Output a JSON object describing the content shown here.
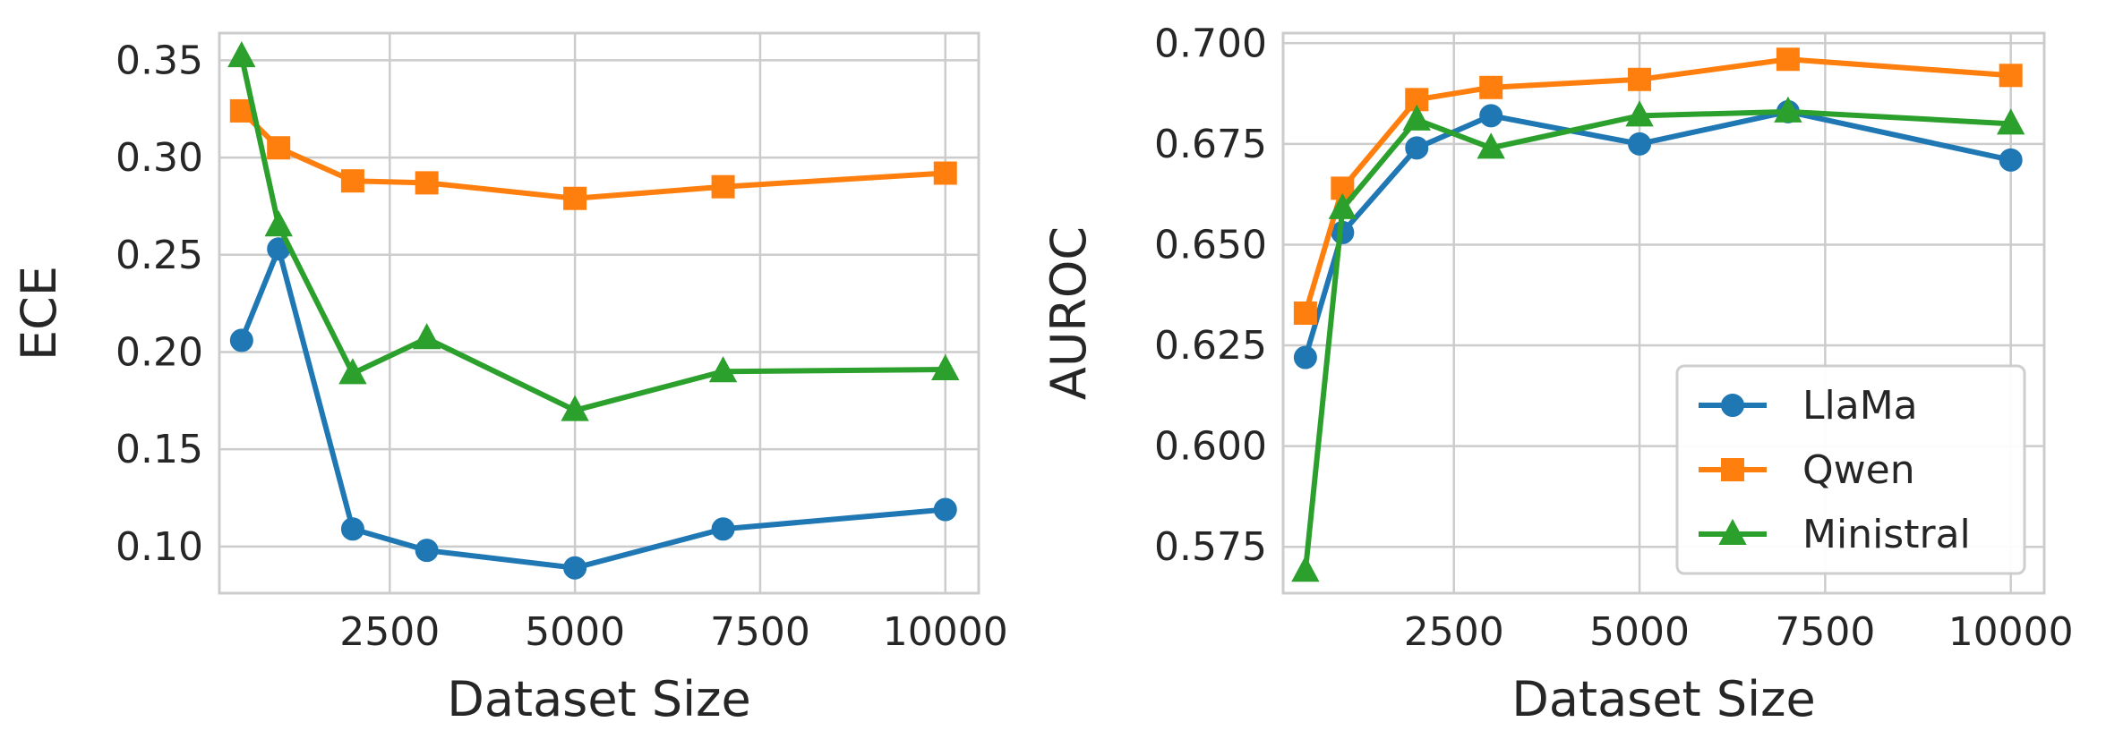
{
  "chart_data": [
    {
      "type": "line",
      "xlabel": "Dataset Size",
      "ylabel": "ECE",
      "xlim": [
        200,
        10450
      ],
      "ylim": [
        0.076,
        0.364
      ],
      "xticks": [
        2500,
        5000,
        7500,
        10000
      ],
      "yticks": [
        0.1,
        0.15,
        0.2,
        0.25,
        0.3,
        0.35
      ],
      "ytick_labels": [
        "0.10",
        "0.15",
        "0.20",
        "0.25",
        "0.30",
        "0.35"
      ],
      "grid": true,
      "x": [
        500,
        1000,
        2000,
        3000,
        5000,
        7000,
        10000
      ],
      "series": [
        {
          "name": "LlaMa",
          "color": "#1f77b4",
          "marker": "circle",
          "values": [
            0.206,
            0.253,
            0.109,
            0.098,
            0.089,
            0.109,
            0.119
          ]
        },
        {
          "name": "Qwen",
          "color": "#ff7f0e",
          "marker": "square",
          "values": [
            0.324,
            0.305,
            0.288,
            0.287,
            0.279,
            0.285,
            0.292
          ]
        },
        {
          "name": "Ministral",
          "color": "#2ca02c",
          "marker": "triangle",
          "values": [
            0.352,
            0.265,
            0.189,
            0.207,
            0.17,
            0.19,
            0.191
          ]
        }
      ]
    },
    {
      "type": "line",
      "xlabel": "Dataset Size",
      "ylabel": "AUROC",
      "xlim": [
        200,
        10450
      ],
      "ylim": [
        0.5635,
        0.7025
      ],
      "xticks": [
        2500,
        5000,
        7500,
        10000
      ],
      "yticks": [
        0.575,
        0.6,
        0.625,
        0.65,
        0.675,
        0.7
      ],
      "ytick_labels": [
        "0.575",
        "0.600",
        "0.625",
        "0.650",
        "0.675",
        "0.700"
      ],
      "grid": true,
      "legend": "bottom-right",
      "x": [
        500,
        1000,
        2000,
        3000,
        5000,
        7000,
        10000
      ],
      "series": [
        {
          "name": "LlaMa",
          "color": "#1f77b4",
          "marker": "circle",
          "values": [
            0.622,
            0.653,
            0.674,
            0.682,
            0.675,
            0.683,
            0.671
          ]
        },
        {
          "name": "Qwen",
          "color": "#ff7f0e",
          "marker": "square",
          "values": [
            0.633,
            0.664,
            0.686,
            0.689,
            0.691,
            0.696,
            0.692
          ]
        },
        {
          "name": "Ministral",
          "color": "#2ca02c",
          "marker": "triangle",
          "values": [
            0.569,
            0.659,
            0.681,
            0.674,
            0.682,
            0.683,
            0.68
          ]
        }
      ]
    }
  ]
}
